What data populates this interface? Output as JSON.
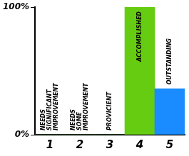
{
  "chart_data": {
    "type": "bar",
    "categories": [
      "1",
      "2",
      "3",
      "4",
      "5"
    ],
    "values": [
      0,
      0,
      0,
      100,
      36
    ],
    "colors": [
      "#66cc11",
      "#66cc11",
      "#66cc11",
      "#66cc11",
      "#1a8cff"
    ],
    "ylim": [
      0,
      100
    ],
    "yticks": [
      {
        "value": 0,
        "label": "0%"
      },
      {
        "value": 100,
        "label": "100%"
      }
    ],
    "grid": false,
    "annotations": [
      {
        "category": "1",
        "text": [
          "NEEDS",
          "SIGNIFICANT",
          "IMPROVEMENT"
        ]
      },
      {
        "category": "2",
        "text": [
          "NEEDS",
          "SOME",
          "IMPROVEMENT"
        ]
      },
      {
        "category": "3",
        "text": [
          "PROVICIENT"
        ]
      },
      {
        "category": "4",
        "text": [
          "ACCOMPLISHED"
        ]
      },
      {
        "category": "5",
        "text": [
          "OUTSTANDING"
        ]
      }
    ]
  }
}
